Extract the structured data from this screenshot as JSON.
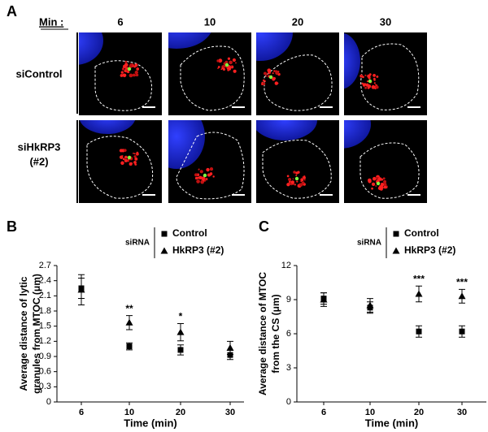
{
  "figure": {
    "panel": "A",
    "min_label": "Min :",
    "columns": [
      "6",
      "10",
      "20",
      "30"
    ],
    "rows": [
      [
        "siControl"
      ],
      [
        "siHkRP3",
        "(#2)"
      ]
    ]
  },
  "chart_data": [
    {
      "type": "errorbar",
      "panel": "B",
      "legend_title": "siRNA",
      "ylabel": [
        "Average distance of lytic",
        "granules from MTOC (μm)"
      ],
      "xlabel": "Time (min)",
      "categories": [
        "6",
        "10",
        "20",
        "30"
      ],
      "series": [
        {
          "name": "Control",
          "color": "#000000",
          "marker": "square",
          "values": [
            2.25,
            1.1,
            1.03,
            0.93
          ],
          "errors": [
            0.2,
            0.07,
            0.1,
            0.09
          ]
        },
        {
          "name": "HkRP3 (#2)",
          "color": "#000000",
          "marker": "triangle",
          "values": [
            2.22,
            1.57,
            1.38,
            1.07
          ],
          "errors": [
            0.3,
            0.14,
            0.17,
            0.13
          ]
        }
      ],
      "annotations": [
        {
          "category": "10",
          "text": "**"
        },
        {
          "category": "20",
          "text": "*"
        }
      ],
      "ylim": [
        0,
        2.7
      ],
      "yticks": [
        0,
        0.3,
        0.6,
        0.9,
        1.2,
        1.5,
        1.8,
        2.1,
        2.4,
        2.7
      ]
    },
    {
      "type": "errorbar",
      "panel": "C",
      "legend_title": "siRNA",
      "ylabel": [
        "Average distance of MTOC",
        "from the CS (μm)"
      ],
      "xlabel": "Time (min)",
      "categories": [
        "6",
        "10",
        "20",
        "30"
      ],
      "series": [
        {
          "name": "Control",
          "color": "#000000",
          "marker": "square",
          "values": [
            9.1,
            8.3,
            6.2,
            6.2
          ],
          "errors": [
            0.5,
            0.5,
            0.5,
            0.5
          ]
        },
        {
          "name": "HkRP3 (#2)",
          "color": "#000000",
          "marker": "triangle",
          "values": [
            9.0,
            8.5,
            9.5,
            9.3
          ],
          "errors": [
            0.6,
            0.6,
            0.7,
            0.6
          ]
        }
      ],
      "annotations": [
        {
          "category": "20",
          "text": "***"
        },
        {
          "category": "30",
          "text": "***"
        }
      ],
      "ylim": [
        0,
        12
      ],
      "yticks": [
        0,
        3,
        6,
        9,
        12
      ]
    }
  ]
}
